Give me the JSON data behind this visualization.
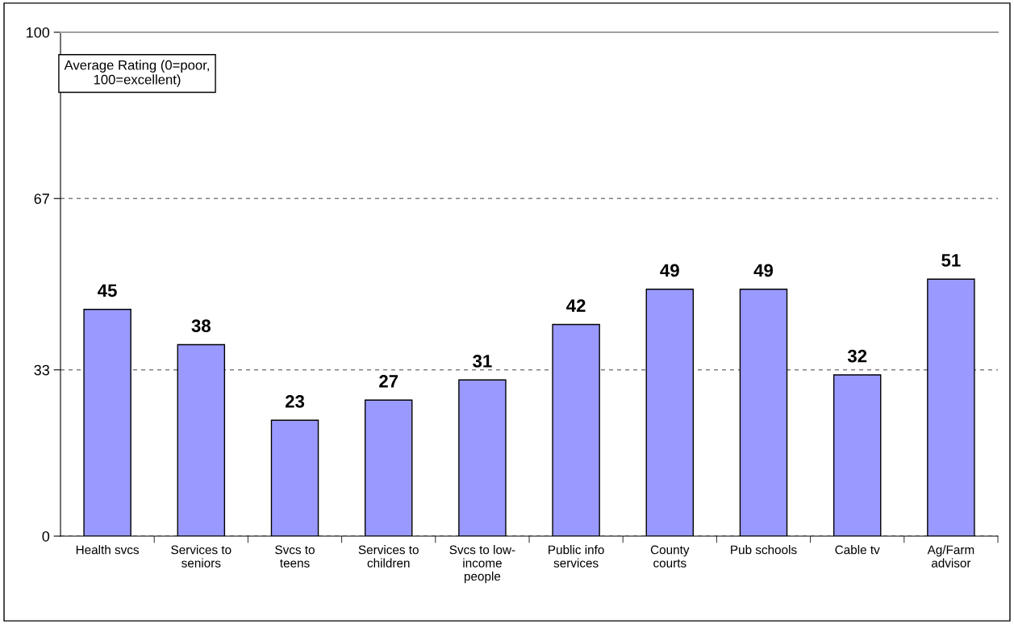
{
  "chart_data": {
    "type": "bar",
    "categories": [
      "Health svcs",
      "Services to\nseniors",
      "Svcs to\nteens",
      "Services to\nchildren",
      "Svcs to low-\nincome\npeople",
      "Public info\nservices",
      "County\ncourts",
      "Pub schools",
      "Cable tv",
      "Ag/Farm\nadvisor"
    ],
    "values": [
      45,
      38,
      23,
      27,
      31,
      42,
      49,
      49,
      32,
      51
    ],
    "color": "#9999ff",
    "ylim": [
      0,
      100
    ],
    "yticks": [
      0,
      33,
      67,
      100
    ],
    "grid": "y",
    "line_style": "dashed",
    "data_labels": true,
    "annotations": [
      "Average Rating (0=poor,\n100=excellent)"
    ]
  }
}
